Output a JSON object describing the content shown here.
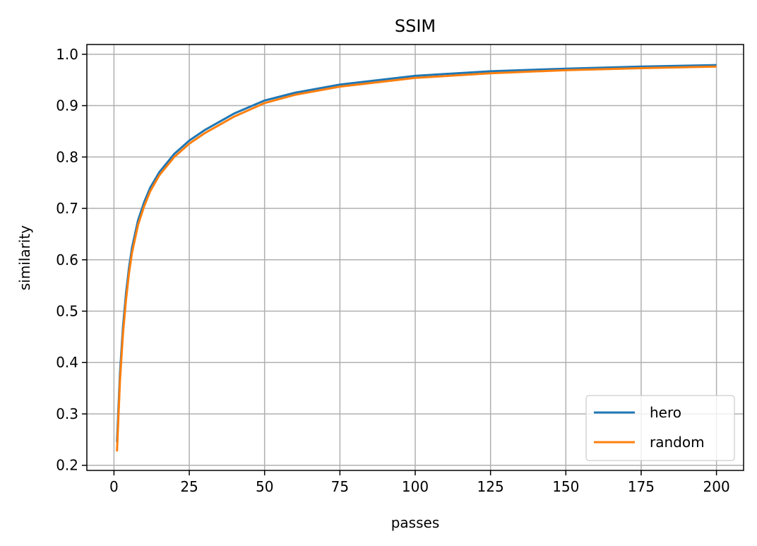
{
  "chart_data": {
    "type": "line",
    "title": "SSIM",
    "xlabel": "passes",
    "ylabel": "similarity",
    "xlim": [
      -9,
      209
    ],
    "ylim": [
      0.19,
      1.019
    ],
    "xticks": [
      0,
      25,
      50,
      75,
      100,
      125,
      150,
      175,
      200
    ],
    "xtick_labels": [
      "0",
      "25",
      "50",
      "75",
      "100",
      "125",
      "150",
      "175",
      "200"
    ],
    "yticks": [
      0.2,
      0.3,
      0.4,
      0.5,
      0.6,
      0.7,
      0.8,
      0.9,
      1.0
    ],
    "ytick_labels": [
      "0.2",
      "0.3",
      "0.4",
      "0.5",
      "0.6",
      "0.7",
      "0.8",
      "0.9",
      "1.0"
    ],
    "grid": true,
    "legend_position": "lower-right",
    "series": [
      {
        "name": "hero",
        "color": "#1f77b4",
        "x": [
          1,
          2,
          3,
          4,
          5,
          6,
          8,
          10,
          12,
          15,
          20,
          25,
          30,
          40,
          50,
          60,
          75,
          100,
          125,
          150,
          175,
          200
        ],
        "y": [
          0.245,
          0.38,
          0.47,
          0.535,
          0.585,
          0.624,
          0.677,
          0.712,
          0.74,
          0.77,
          0.806,
          0.832,
          0.852,
          0.885,
          0.91,
          0.925,
          0.941,
          0.958,
          0.967,
          0.972,
          0.976,
          0.979
        ]
      },
      {
        "name": "random",
        "color": "#ff7f0e",
        "x": [
          1,
          2,
          3,
          4,
          5,
          6,
          8,
          10,
          12,
          15,
          20,
          25,
          30,
          40,
          50,
          60,
          75,
          100,
          125,
          150,
          175,
          200
        ],
        "y": [
          0.227,
          0.365,
          0.457,
          0.522,
          0.574,
          0.614,
          0.668,
          0.704,
          0.733,
          0.764,
          0.8,
          0.826,
          0.846,
          0.879,
          0.905,
          0.921,
          0.937,
          0.954,
          0.963,
          0.969,
          0.973,
          0.976
        ]
      }
    ]
  }
}
